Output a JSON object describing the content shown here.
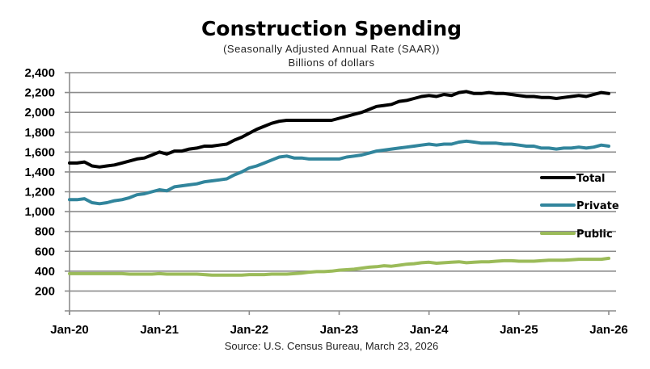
{
  "chart_data": {
    "type": "line",
    "title": "Construction Spending",
    "subtitle": "(Seasonally Adjusted Annual Rate (SAAR))",
    "ylabel": "Billions of dollars",
    "source": "Source: U.S. Census Bureau, March 23, 2026",
    "x_start": "Jan-20",
    "x_end": "Jan-26",
    "x_frequency": "monthly",
    "xticks": [
      "Jan-20",
      "Jan-21",
      "Jan-22",
      "Jan-23",
      "Jan-24",
      "Jan-25",
      "Jan-26"
    ],
    "yticks": [
      "200",
      "400",
      "600",
      "800",
      "1,000",
      "1,200",
      "1,400",
      "1,600",
      "1,800",
      "2,000",
      "2,200",
      "2,400"
    ],
    "ylim": [
      0,
      2400
    ],
    "grid": true,
    "legend_position": "right",
    "series": [
      {
        "name": "Total",
        "color": "#000000",
        "values": [
          1490,
          1490,
          1500,
          1460,
          1450,
          1460,
          1470,
          1490,
          1510,
          1530,
          1540,
          1570,
          1600,
          1580,
          1610,
          1610,
          1630,
          1640,
          1660,
          1660,
          1670,
          1680,
          1720,
          1750,
          1790,
          1830,
          1860,
          1890,
          1910,
          1920,
          1920,
          1920,
          1920,
          1920,
          1920,
          1920,
          1940,
          1960,
          1980,
          2000,
          2030,
          2060,
          2070,
          2080,
          2110,
          2120,
          2140,
          2160,
          2170,
          2160,
          2180,
          2170,
          2200,
          2210,
          2190,
          2190,
          2200,
          2190,
          2190,
          2180,
          2170,
          2160,
          2160,
          2150,
          2150,
          2140,
          2150,
          2160,
          2170,
          2160,
          2180,
          2200,
          2190
        ]
      },
      {
        "name": "Private",
        "color": "#31859C",
        "values": [
          1120,
          1120,
          1130,
          1090,
          1080,
          1090,
          1110,
          1120,
          1140,
          1170,
          1180,
          1200,
          1220,
          1210,
          1250,
          1260,
          1270,
          1280,
          1300,
          1310,
          1320,
          1330,
          1370,
          1400,
          1440,
          1460,
          1490,
          1520,
          1550,
          1560,
          1540,
          1540,
          1530,
          1530,
          1530,
          1530,
          1530,
          1550,
          1560,
          1570,
          1590,
          1610,
          1620,
          1630,
          1640,
          1650,
          1660,
          1670,
          1680,
          1670,
          1680,
          1680,
          1700,
          1710,
          1700,
          1690,
          1690,
          1690,
          1680,
          1680,
          1670,
          1660,
          1660,
          1640,
          1640,
          1630,
          1640,
          1640,
          1650,
          1640,
          1650,
          1670,
          1660
        ]
      },
      {
        "name": "Public",
        "color": "#9BBB59",
        "values": [
          375,
          375,
          375,
          375,
          375,
          375,
          375,
          375,
          370,
          370,
          370,
          370,
          375,
          370,
          370,
          370,
          370,
          370,
          365,
          360,
          360,
          360,
          360,
          360,
          365,
          365,
          365,
          370,
          370,
          370,
          375,
          380,
          390,
          395,
          395,
          400,
          410,
          415,
          420,
          430,
          440,
          445,
          455,
          450,
          460,
          470,
          475,
          485,
          490,
          480,
          485,
          490,
          495,
          485,
          490,
          495,
          495,
          500,
          505,
          505,
          500,
          500,
          500,
          505,
          510,
          510,
          510,
          515,
          520,
          520,
          520,
          520,
          530
        ]
      }
    ]
  }
}
